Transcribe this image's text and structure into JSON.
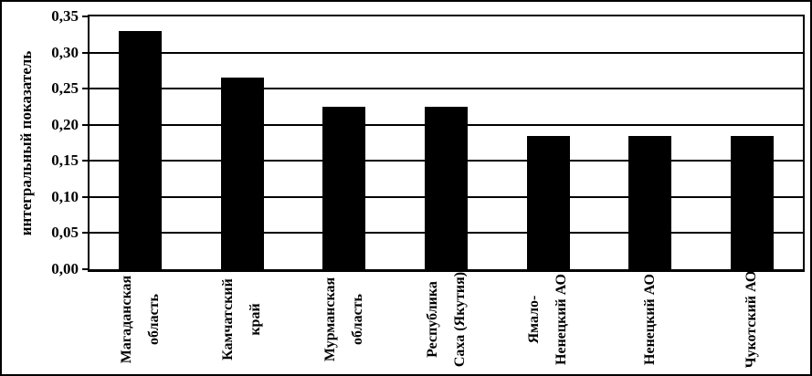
{
  "figure": {
    "background_color": "#ffffff",
    "border_color": "#000000"
  },
  "chart_data": {
    "type": "bar",
    "title": "",
    "xlabel": "",
    "ylabel": "интегральный показатель",
    "categories": [
      "Магаданская область",
      "Камчатский край",
      "Мурманская область",
      "Республика Саха (Якутия)",
      "Ямало-Ненецкий АО",
      "Ненецкий АО",
      "Чукотский АО"
    ],
    "category_label_lines": [
      [
        "Магаданская",
        "область"
      ],
      [
        "Камчатский",
        "край"
      ],
      [
        "Мурманская",
        "область"
      ],
      [
        "Республика",
        "Саха (Якутия)"
      ],
      [
        "Ямало-",
        "Ненецкий АО"
      ],
      [
        "Ненецкий АО"
      ],
      [
        "Чукотский АО"
      ]
    ],
    "values": [
      0.33,
      0.265,
      0.225,
      0.225,
      0.185,
      0.185,
      0.185
    ],
    "ylim": [
      0,
      0.35
    ],
    "y_tick_step": 0.05,
    "y_tick_labels": [
      "0,00",
      "0,05",
      "0,10",
      "0,15",
      "0,20",
      "0,25",
      "0,30",
      "0,35"
    ],
    "bar_color": "#000000",
    "grid": true,
    "gridline_color": "#000000",
    "legend": null
  }
}
